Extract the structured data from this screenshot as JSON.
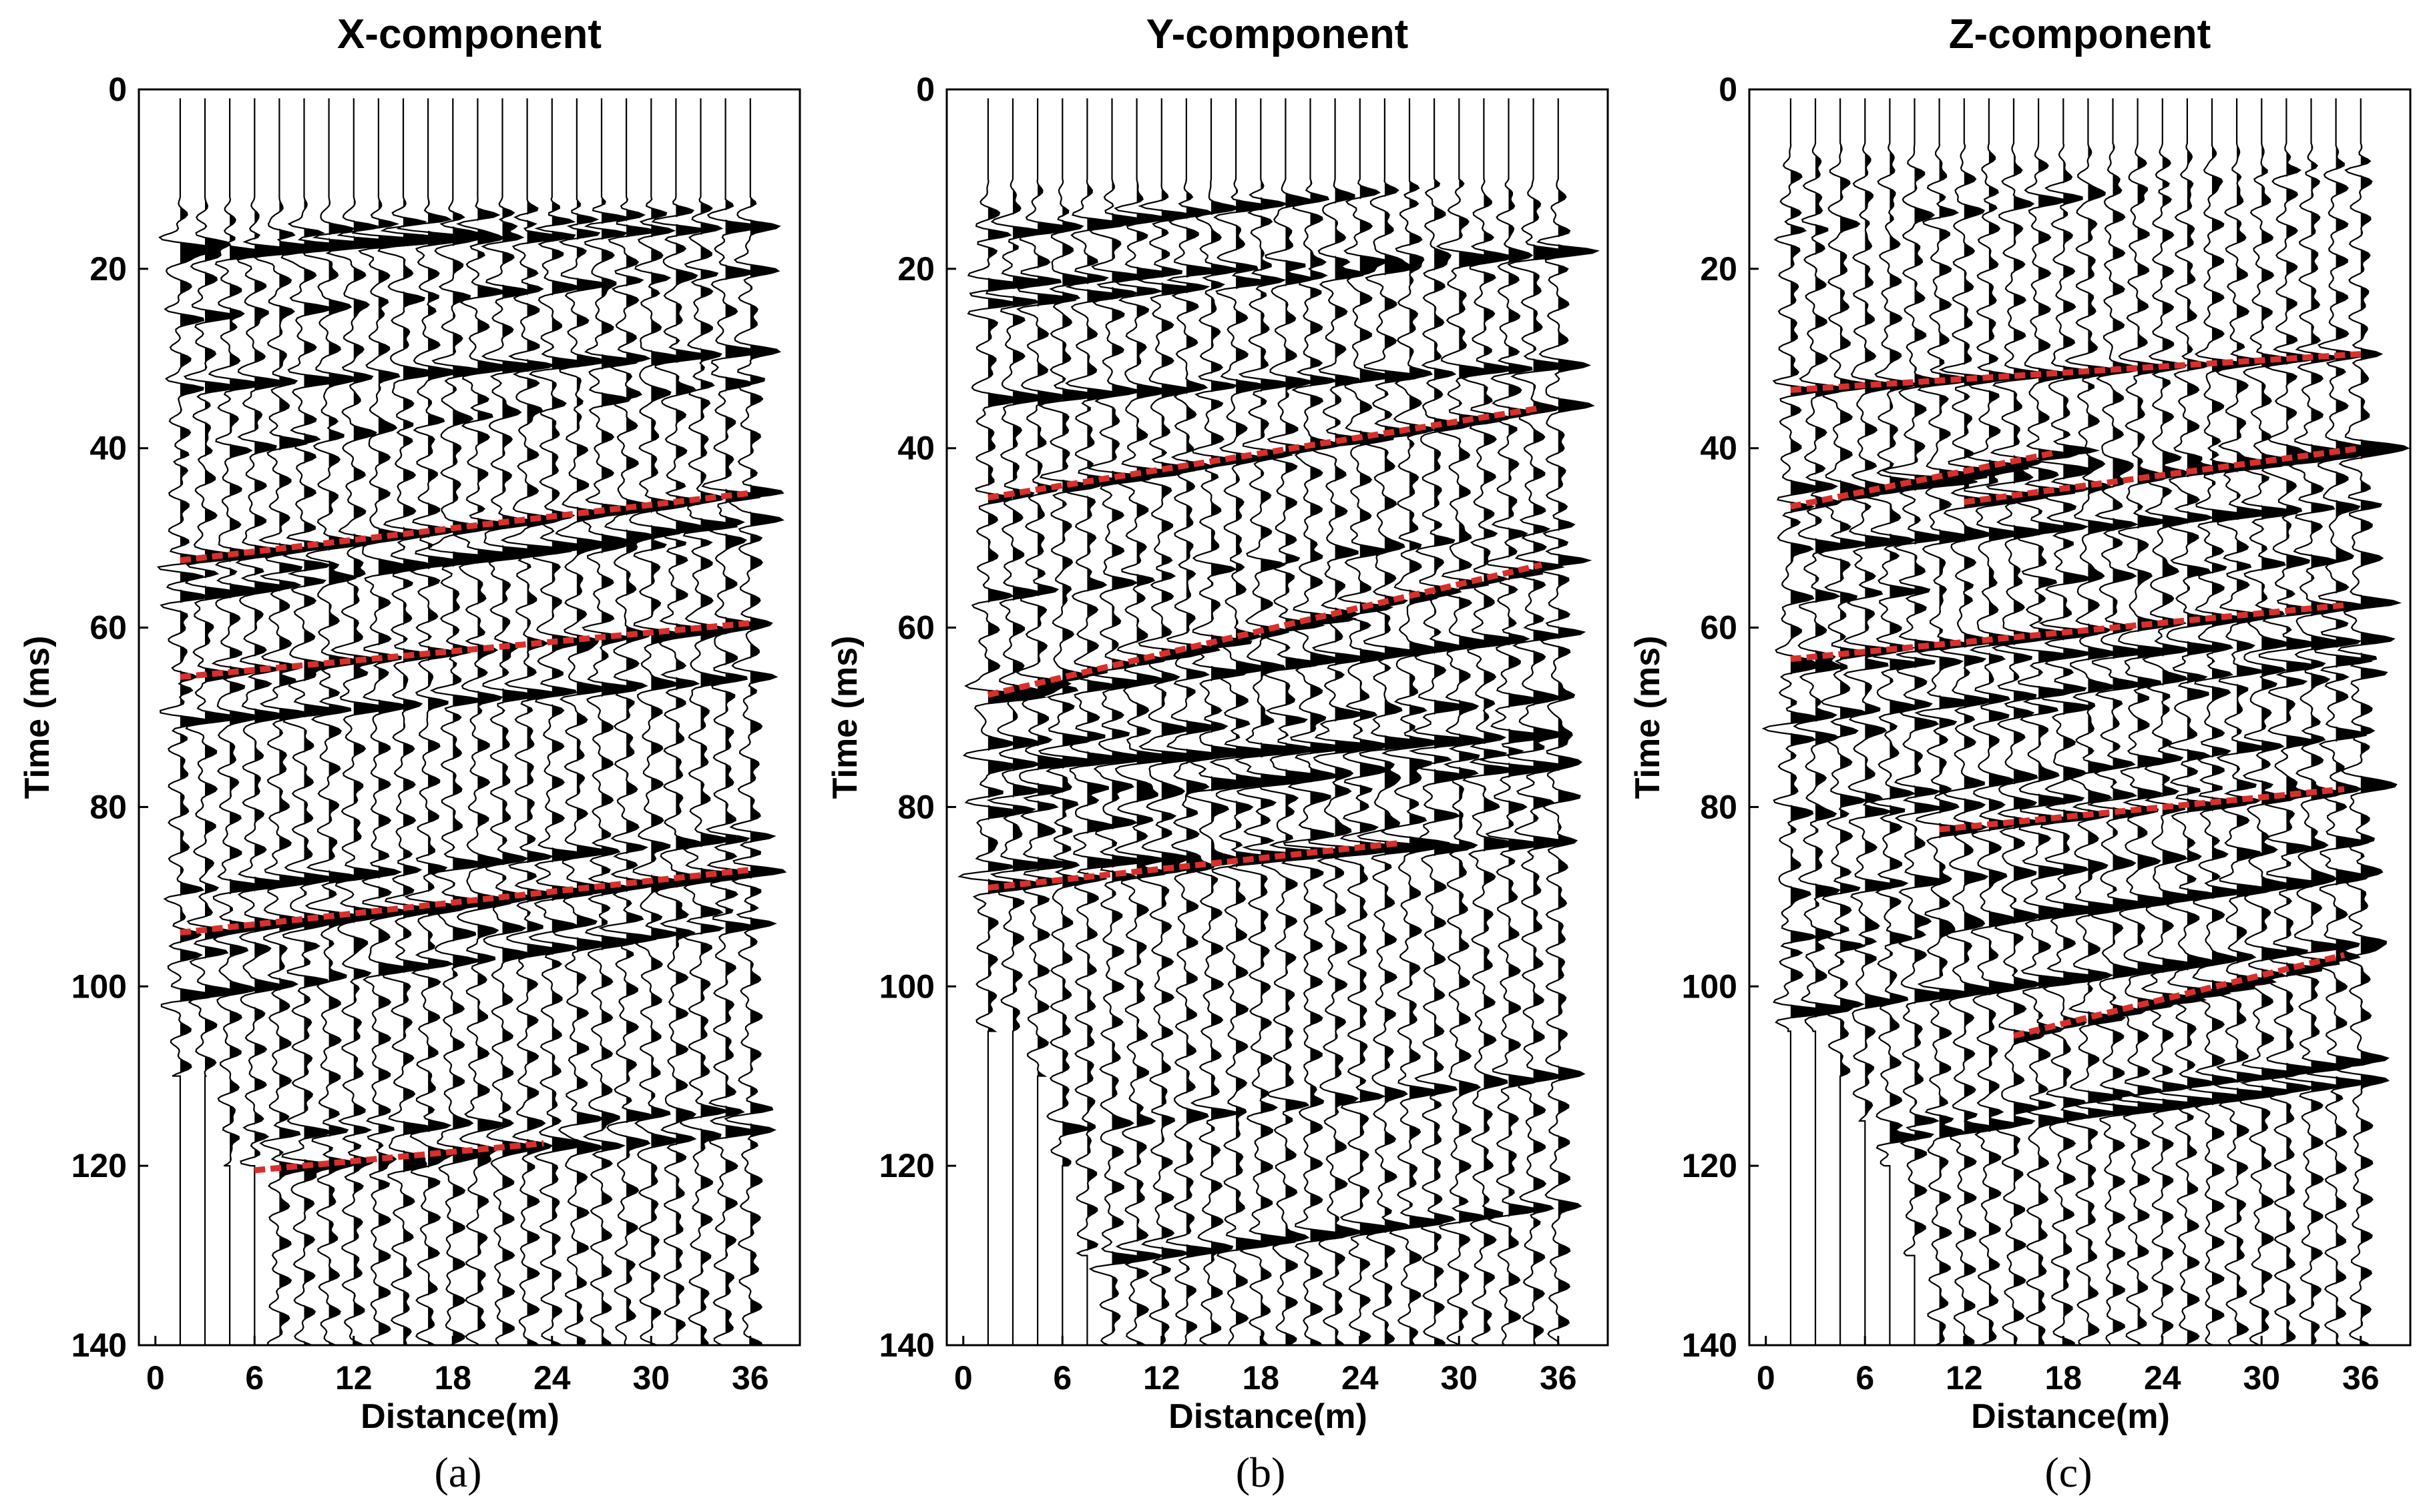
{
  "chart_data": [
    {
      "type": "seismic-wiggle",
      "panel_label": "(a)",
      "title": "X-component",
      "xlabel": "Distance(m)",
      "ylabel": "Time (ms)",
      "xlim": [
        -1,
        39
      ],
      "ylim": [
        0,
        140
      ],
      "y_inverted": true,
      "xticks": [
        0,
        6,
        12,
        18,
        24,
        30,
        36
      ],
      "yticks": [
        0,
        20,
        40,
        60,
        80,
        100,
        120,
        140
      ],
      "trace_offsets_m": [
        1.5,
        3,
        4.5,
        6,
        7.5,
        9,
        10.5,
        12,
        13.5,
        15,
        16.5,
        18,
        19.5,
        21,
        22.5,
        24,
        25.5,
        27,
        28.5,
        30,
        31.5,
        33,
        34.5,
        36
      ],
      "first_arrival_ms": [
        12,
        12,
        12,
        12,
        12,
        12,
        12,
        12,
        12,
        12,
        12,
        12,
        12,
        12,
        12,
        12,
        12,
        12,
        12,
        12,
        12,
        12,
        12,
        12
      ],
      "data_end_ms": [
        110,
        110,
        120,
        120,
        140,
        140,
        140,
        140,
        140,
        140,
        140,
        140,
        140,
        140,
        140,
        140,
        140,
        140,
        140,
        140,
        140,
        140,
        140,
        140
      ],
      "picked_events": [
        {
          "x": [
            1.5,
            36
          ],
          "t": [
            52.5,
            45
          ]
        },
        {
          "x": [
            1.5,
            36
          ],
          "t": [
            65.5,
            59.5
          ]
        },
        {
          "x": [
            1.5,
            36
          ],
          "t": [
            94,
            87
          ]
        },
        {
          "x": [
            6,
            23.5
          ],
          "t": [
            120.5,
            117.5
          ]
        }
      ],
      "event_color": "#d9302b"
    },
    {
      "type": "seismic-wiggle",
      "panel_label": "(b)",
      "title": "Y-component",
      "xlabel": "Distance(m)",
      "ylabel": "Time (ms)",
      "xlim": [
        -1,
        39
      ],
      "ylim": [
        0,
        140
      ],
      "y_inverted": true,
      "xticks": [
        0,
        6,
        12,
        18,
        24,
        30,
        36
      ],
      "yticks": [
        0,
        20,
        40,
        60,
        80,
        100,
        120,
        140
      ],
      "trace_offsets_m": [
        1.5,
        3,
        4.5,
        6,
        7.5,
        9,
        10.5,
        12,
        13.5,
        15,
        16.5,
        18,
        19.5,
        21,
        22.5,
        24,
        25.5,
        27,
        28.5,
        30,
        31.5,
        33,
        34.5,
        36
      ],
      "first_arrival_ms": [
        10,
        10,
        10,
        10,
        10,
        10,
        10,
        10,
        10,
        10,
        10,
        10,
        10,
        10,
        10,
        10,
        10,
        10,
        10,
        10,
        10,
        10,
        10,
        10
      ],
      "data_end_ms": [
        105,
        105,
        110,
        120,
        130,
        140,
        140,
        140,
        140,
        140,
        140,
        140,
        140,
        140,
        140,
        140,
        140,
        140,
        140,
        140,
        140,
        140,
        140,
        140
      ],
      "picked_events": [
        {
          "x": [
            1.5,
            35
          ],
          "t": [
            45.5,
            35.5
          ]
        },
        {
          "x": [
            1.5,
            35
          ],
          "t": [
            67.5,
            53
          ]
        },
        {
          "x": [
            1.5,
            26.5
          ],
          "t": [
            89,
            84
          ]
        }
      ],
      "event_color": "#d9302b"
    },
    {
      "type": "seismic-wiggle",
      "panel_label": "(c)",
      "title": "Z-component",
      "xlabel": "Distance(m)",
      "ylabel": "Time (ms)",
      "xlim": [
        -1,
        39
      ],
      "ylim": [
        0,
        140
      ],
      "y_inverted": true,
      "xticks": [
        0,
        6,
        12,
        18,
        24,
        30,
        36
      ],
      "yticks": [
        0,
        20,
        40,
        60,
        80,
        100,
        120,
        140
      ],
      "trace_offsets_m": [
        1.5,
        3,
        4.5,
        6,
        7.5,
        9,
        10.5,
        12,
        13.5,
        15,
        16.5,
        18,
        19.5,
        21,
        22.5,
        24,
        25.5,
        27,
        28.5,
        30,
        31.5,
        33,
        34.5,
        36
      ],
      "first_arrival_ms": [
        6,
        6,
        6,
        6,
        6,
        6,
        6,
        6,
        6,
        6,
        6,
        6,
        6,
        6,
        6,
        6,
        6,
        6,
        6,
        6,
        6,
        6,
        6,
        6
      ],
      "data_end_ms": [
        105,
        105,
        110,
        115,
        120,
        130,
        140,
        140,
        140,
        140,
        140,
        140,
        140,
        140,
        140,
        140,
        140,
        140,
        140,
        140,
        140,
        140,
        140,
        140
      ],
      "picked_events": [
        {
          "x": [
            1.5,
            36
          ],
          "t": [
            33.5,
            29.5
          ]
        },
        {
          "x": [
            1.5,
            17.5
          ],
          "t": [
            46.5,
            40.5
          ]
        },
        {
          "x": [
            12,
            36
          ],
          "t": [
            46,
            40
          ]
        },
        {
          "x": [
            1.5,
            35
          ],
          "t": [
            63.5,
            57.5
          ]
        },
        {
          "x": [
            10.5,
            35
          ],
          "t": [
            82.5,
            78
          ]
        },
        {
          "x": [
            15,
            35
          ],
          "t": [
            105.5,
            96.5
          ]
        }
      ],
      "event_color": "#d9302b"
    }
  ]
}
